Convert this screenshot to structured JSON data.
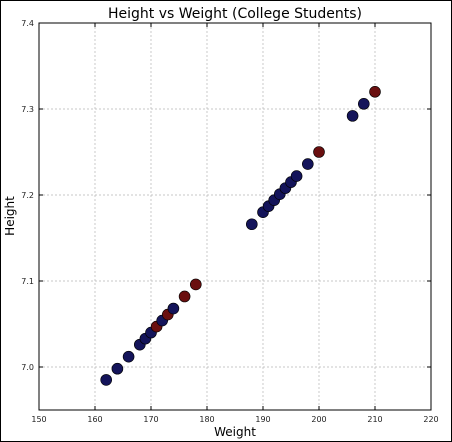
{
  "chart_data": {
    "type": "scatter",
    "title": "Height vs Weight (College Students)",
    "xlabel": "Weight",
    "ylabel": "Height",
    "xlim": [
      150,
      220
    ],
    "ylim": [
      6.95,
      7.4
    ],
    "xticks": [
      "150",
      "160",
      "170",
      "180",
      "190",
      "200",
      "210",
      "220"
    ],
    "yticks": [
      "7.0",
      "7.1",
      "7.2",
      "7.3",
      "7.4"
    ],
    "grid": true,
    "colors": {
      "navy": "#14145a",
      "maroon": "#6a0f0f"
    },
    "points": [
      {
        "x": 162,
        "y": 6.985,
        "group": "navy"
      },
      {
        "x": 164,
        "y": 6.998,
        "group": "navy"
      },
      {
        "x": 166,
        "y": 7.012,
        "group": "navy"
      },
      {
        "x": 168,
        "y": 7.026,
        "group": "navy"
      },
      {
        "x": 169,
        "y": 7.033,
        "group": "navy"
      },
      {
        "x": 170,
        "y": 7.04,
        "group": "navy"
      },
      {
        "x": 171,
        "y": 7.047,
        "group": "maroon"
      },
      {
        "x": 172,
        "y": 7.054,
        "group": "navy"
      },
      {
        "x": 173,
        "y": 7.061,
        "group": "maroon"
      },
      {
        "x": 174,
        "y": 7.068,
        "group": "navy"
      },
      {
        "x": 176,
        "y": 7.082,
        "group": "maroon"
      },
      {
        "x": 178,
        "y": 7.096,
        "group": "maroon"
      },
      {
        "x": 188,
        "y": 7.166,
        "group": "navy"
      },
      {
        "x": 190,
        "y": 7.18,
        "group": "navy"
      },
      {
        "x": 191,
        "y": 7.187,
        "group": "navy"
      },
      {
        "x": 192,
        "y": 7.194,
        "group": "navy"
      },
      {
        "x": 193,
        "y": 7.201,
        "group": "navy"
      },
      {
        "x": 194,
        "y": 7.208,
        "group": "navy"
      },
      {
        "x": 195,
        "y": 7.215,
        "group": "navy"
      },
      {
        "x": 196,
        "y": 7.222,
        "group": "navy"
      },
      {
        "x": 198,
        "y": 7.236,
        "group": "navy"
      },
      {
        "x": 200,
        "y": 7.25,
        "group": "maroon"
      },
      {
        "x": 206,
        "y": 7.292,
        "group": "navy"
      },
      {
        "x": 208,
        "y": 7.306,
        "group": "navy"
      },
      {
        "x": 210,
        "y": 7.32,
        "group": "maroon"
      }
    ]
  }
}
